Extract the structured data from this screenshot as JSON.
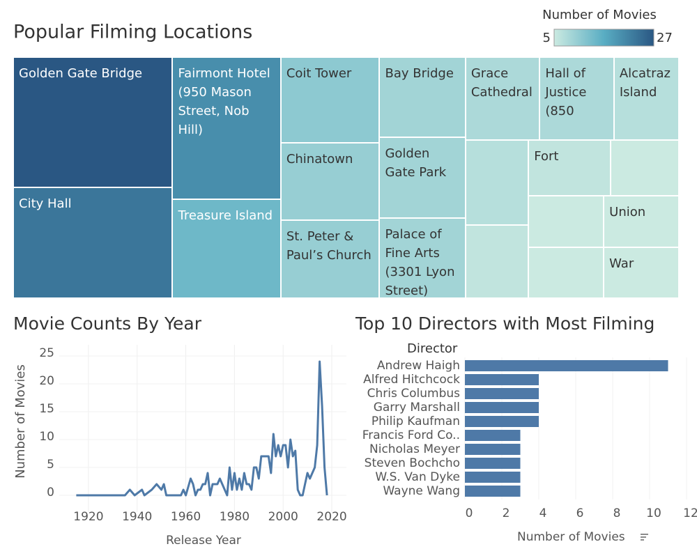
{
  "chart_data": [
    {
      "type": "treemap",
      "title": "Popular Filming Locations",
      "color_title": "Number of Movies",
      "color_range": [
        5,
        27
      ],
      "colors": [
        "#cbeae1",
        "#59adc3",
        "#2a5783"
      ],
      "categories": [
        "Golden Gate Bridge",
        "City Hall",
        "Fairmont Hotel (950 Mason Street, Nob Hill)",
        "Treasure Island",
        "Coit Tower",
        "Chinatown",
        "St. Peter & Paul’s Church",
        "Bay Bridge",
        "Golden Gate Park",
        "Palace of Fine Arts (3301 Lyon Street)",
        "Grace Cathedral",
        "Hall of Justice (850",
        "Alcatraz Island",
        null,
        null,
        "Fort",
        null,
        null,
        null,
        "Union",
        "War"
      ],
      "values": [
        27,
        23,
        20,
        14,
        11,
        10,
        10,
        9,
        9,
        9,
        8,
        8,
        7,
        7,
        6,
        6,
        5,
        5,
        5,
        5,
        5
      ]
    },
    {
      "type": "line",
      "title": "Movie Counts By Year",
      "xlabel": "Release Year",
      "ylabel": "Number of Movies",
      "color": "#4e79a7",
      "x": [
        1915,
        1935,
        1937,
        1939,
        1942,
        1943,
        1946,
        1948,
        1950,
        1951,
        1952,
        1958,
        1959,
        1960,
        1962,
        1963,
        1964,
        1965,
        1966,
        1967,
        1968,
        1969,
        1970,
        1971,
        1972,
        1973,
        1974,
        1975,
        1976,
        1977,
        1978,
        1979,
        1980,
        1981,
        1982,
        1983,
        1984,
        1985,
        1986,
        1987,
        1988,
        1989,
        1990,
        1991,
        1992,
        1993,
        1994,
        1995,
        1996,
        1997,
        1998,
        1999,
        2000,
        2001,
        2002,
        2003,
        2004,
        2005,
        2006,
        2007,
        2008,
        2009,
        2010,
        2011,
        2012,
        2013,
        2014,
        2015,
        2016,
        2017,
        2018
      ],
      "values": [
        0,
        0,
        1,
        0,
        1,
        0,
        1,
        2,
        1,
        2,
        0,
        0,
        1,
        0,
        3,
        2,
        0,
        1,
        1,
        2,
        2,
        4,
        0,
        2,
        2,
        2,
        3,
        2,
        1,
        0,
        5,
        1,
        4,
        1,
        3,
        1,
        4,
        2,
        2,
        1,
        5,
        5,
        3,
        7,
        7,
        7,
        7,
        4,
        11,
        7,
        9,
        7,
        9,
        9,
        5,
        10,
        7,
        8,
        1,
        0,
        0,
        2,
        4,
        3,
        4,
        5,
        9,
        24,
        16,
        5,
        0
      ],
      "xlim": [
        1908,
        2026
      ],
      "xticks": [
        1920,
        1940,
        1960,
        1980,
        2000,
        2020
      ],
      "ylim": [
        -3,
        27
      ],
      "yticks": [
        0,
        5,
        10,
        15,
        20,
        25
      ],
      "grid": true
    },
    {
      "type": "bar",
      "orientation": "horizontal",
      "title": "Top 10 Directors with Most Filming",
      "category_label": "Director",
      "xlabel": "Number of Movies",
      "color": "#4e79a7",
      "categories": [
        "Andrew Haigh",
        "Alfred Hitchcock",
        "Chris Columbus",
        "Garry Marshall",
        "Philip Kaufman",
        "Francis Ford Co..",
        "Nicholas Meyer",
        "Steven Bochcho",
        "W.S. Van Dyke",
        "Wayne Wang"
      ],
      "values": [
        11,
        4,
        4,
        4,
        4,
        3,
        3,
        3,
        3,
        3
      ],
      "xlim": [
        0,
        12
      ],
      "xticks": [
        0,
        2,
        4,
        6,
        8,
        10,
        12
      ],
      "grid": true
    }
  ]
}
